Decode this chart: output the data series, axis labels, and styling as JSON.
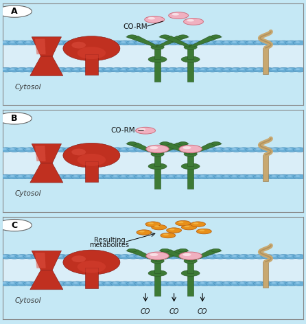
{
  "bg_color": "#c5e8f5",
  "panel_bg": "#c5e8f5",
  "bead_color": "#6aafd6",
  "bead_edge": "#4a8cb8",
  "mem_inner_color": "#daeef8",
  "red_color": "#c03020",
  "red_dark": "#801510",
  "red_highlight": "#e05040",
  "green_color": "#3d7a35",
  "green_dark": "#2a5525",
  "green_light": "#5aaa4a",
  "pink_color": "#f0b0c0",
  "pink_edge": "#d07080",
  "orange_color": "#e8901a",
  "orange_edge": "#b86010",
  "tan_color": "#c8a870",
  "tan_dark": "#907040",
  "label_A": "A",
  "label_B": "B",
  "label_C": "C",
  "cytosol": "Cytosol",
  "co_rm": "CO-RM",
  "resulting": "Resulting",
  "metabolites": "metabolites",
  "co": "CO",
  "figsize": [
    4.46,
    4.72
  ],
  "dpi": 100
}
